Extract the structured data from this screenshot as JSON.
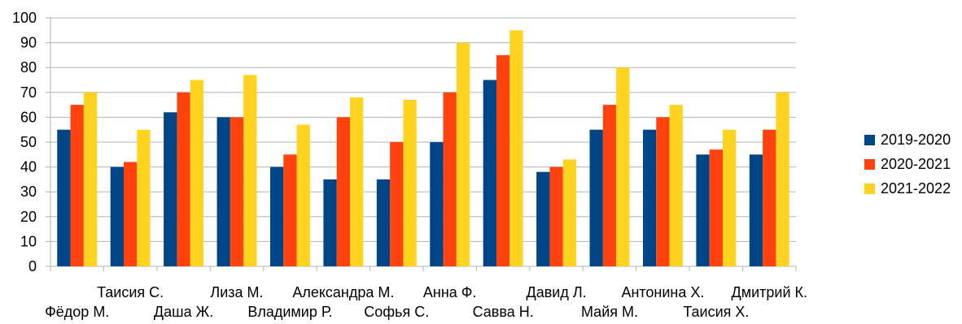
{
  "chart_data": {
    "type": "bar",
    "title": "",
    "xlabel": "",
    "ylabel": "",
    "ylim": [
      0,
      100
    ],
    "ytick_step": 10,
    "grid": true,
    "legend_position": "right",
    "categories": [
      "Фёдор М.",
      "Таисия С.",
      "Даша Ж.",
      "Лиза М.",
      "Владимир Р.",
      "Александра М.",
      "Софья С.",
      "Анна Ф.",
      "Савва Н.",
      "Давид Л.",
      "Майя М.",
      "Антонина Х.",
      "Таисия Х.",
      "Дмитрий К."
    ],
    "series": [
      {
        "name": "2019-2020",
        "color": "#004586",
        "values": [
          55,
          40,
          62,
          60,
          40,
          35,
          35,
          50,
          75,
          38,
          55,
          55,
          45,
          45
        ]
      },
      {
        "name": "2020-2021",
        "color": "#ff420e",
        "values": [
          65,
          42,
          70,
          60,
          45,
          60,
          50,
          70,
          85,
          40,
          65,
          60,
          47,
          55
        ]
      },
      {
        "name": "2021-2022",
        "color": "#ffd320",
        "values": [
          70,
          55,
          75,
          77,
          57,
          68,
          67,
          90,
          95,
          43,
          80,
          65,
          55,
          70
        ]
      }
    ]
  }
}
